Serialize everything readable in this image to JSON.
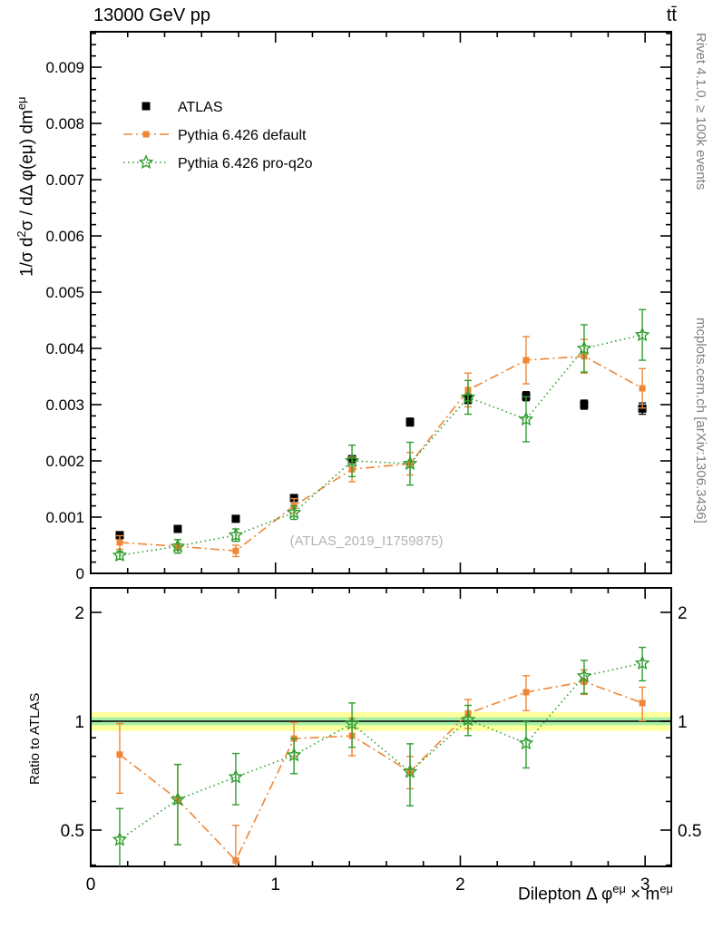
{
  "header": {
    "left": "13000 GeV pp",
    "right": "tt̄"
  },
  "side_labels": {
    "right_top": "Rivet 4.1.0, ≥ 100k events",
    "right_bottom": "mcplots.cern.ch [arXiv:1306.3436]"
  },
  "watermark": "(ATLAS_2019_I1759875)",
  "axes": {
    "ylabel_main_parts": [
      "1/σ d",
      "2",
      "σ / dΔ φ(eμ) dm",
      "eμ"
    ],
    "ylabel_ratio": "Ratio to ATLAS",
    "xlabel_parts": [
      "Dilepton Δ φ",
      "eμ",
      " × m",
      "eμ"
    ]
  },
  "legend": [
    {
      "label": "ATLAS"
    },
    {
      "label": "Pythia 6.426 default"
    },
    {
      "label": "Pythia 6.426 pro-q2o"
    }
  ],
  "colors": {
    "atlas": "#000000",
    "default_orange": "#ef8636",
    "proq2o_green": "#2f9e2f",
    "band_yellow": "#ffff9e",
    "band_green": "#a8f0a8",
    "watermark": "#b4b4b4",
    "muted": "#808080"
  },
  "chart_data": {
    "type": "line",
    "title": "13000 GeV pp → tt̄",
    "xlabel": "Dilepton Δφ^{eμ} × m^{eμ}",
    "ylabel": "1/σ d²σ / dΔφ(eμ)dm^{eμ}",
    "ylabel_ratio": "Ratio to ATLAS",
    "x": [
      0.157,
      0.471,
      0.785,
      1.1,
      1.414,
      1.728,
      2.042,
      2.356,
      2.67,
      2.985
    ],
    "series": [
      {
        "name": "ATLAS",
        "values": [
          0.00068,
          0.00079,
          0.00097,
          0.00134,
          0.00203,
          0.00269,
          0.0031,
          0.00315,
          0.003,
          0.00293
        ],
        "errors": [
          4e-05,
          4e-05,
          4e-05,
          5e-05,
          6e-05,
          7e-05,
          8e-05,
          8e-05,
          8e-05,
          0.0001
        ]
      },
      {
        "name": "Pythia 6.426 default",
        "values": [
          0.00055,
          0.00048,
          0.0004,
          0.0012,
          0.00185,
          0.00195,
          0.00326,
          0.00379,
          0.00386,
          0.00329
        ],
        "errors": [
          0.00012,
          0.00012,
          0.0001,
          0.00013,
          0.00022,
          0.0002,
          0.0003,
          0.00042,
          0.0003,
          0.00035
        ]
      },
      {
        "name": "Pythia 6.426 pro-q2o",
        "values": [
          0.00032,
          0.00048,
          0.00068,
          0.00108,
          0.002,
          0.00195,
          0.00313,
          0.00274,
          0.004,
          0.00424
        ],
        "errors": [
          7e-05,
          0.00012,
          0.00011,
          0.00012,
          0.00028,
          0.00038,
          0.0003,
          0.0004,
          0.00042,
          0.00045
        ]
      }
    ],
    "main_axis": {
      "xlim": [
        0,
        3.1416
      ],
      "xticks": [
        0,
        1,
        2,
        3
      ],
      "ylim": [
        0,
        0.00963
      ],
      "yticks": [
        0,
        0.001,
        0.002,
        0.003,
        0.004,
        0.005,
        0.006,
        0.007,
        0.008,
        0.009
      ],
      "grid": false,
      "legend_position": "upper-left"
    },
    "ratio_axis": {
      "scale": "log",
      "ylim": [
        0.397,
        2.337
      ],
      "yticks": [
        0.5,
        1,
        2
      ],
      "yminor": [
        0.4,
        0.6,
        0.7,
        0.8,
        0.9
      ]
    },
    "ratio_band": {
      "yellow": 0.06,
      "green": 0.025
    }
  }
}
